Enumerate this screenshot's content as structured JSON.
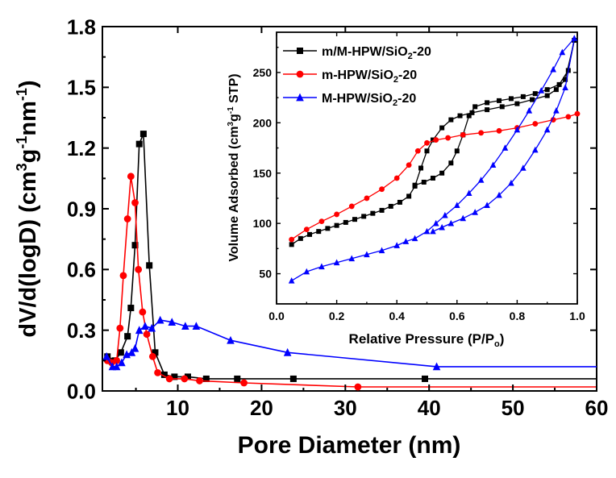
{
  "chart_data": [
    {
      "type": "line",
      "title": "",
      "xlabel": "Pore Diameter (nm)",
      "ylabel": "dV/d(logD) (cm3g-1nm-1)",
      "ylabel_parts": {
        "main": "dV/d(logD) (cm",
        "sup1": "3",
        "mid1": "g",
        "sup2": "-1",
        "mid2": "nm",
        "sup3": "-1",
        "end": ")"
      },
      "xlim": [
        1,
        60
      ],
      "ylim": [
        0,
        1.8
      ],
      "xticks": [
        10,
        20,
        30,
        40,
        50,
        60
      ],
      "yticks": [
        0.0,
        0.3,
        0.6,
        0.9,
        1.2,
        1.5,
        1.8
      ],
      "xtick_labels": [
        "10",
        "20",
        "30",
        "40",
        "50",
        "60"
      ],
      "ytick_labels": [
        "0.0",
        "0.3",
        "0.6",
        "0.9",
        "1.2",
        "1.5",
        "1.8"
      ],
      "grid": false,
      "series": [
        {
          "name": "m/M-HPW/SiO2-20",
          "color": "#000000",
          "marker": "square",
          "points": [
            [
              1.6,
              0.17
            ],
            [
              2.5,
              0.15
            ],
            [
              3.2,
              0.19
            ],
            [
              4.0,
              0.27
            ],
            [
              4.4,
              0.41
            ],
            [
              4.9,
              0.72
            ],
            [
              5.4,
              1.22
            ],
            [
              5.9,
              1.27
            ],
            [
              6.6,
              0.62
            ],
            [
              7.3,
              0.19
            ],
            [
              8.4,
              0.08
            ],
            [
              9.6,
              0.07
            ],
            [
              11.2,
              0.07
            ],
            [
              13.4,
              0.06
            ],
            [
              17.1,
              0.06
            ],
            [
              23.8,
              0.06
            ],
            [
              39.5,
              0.06
            ],
            [
              60,
              0.06
            ]
          ]
        },
        {
          "name": "m-HPW/SiO2-20",
          "color": "#ff0000",
          "marker": "circle",
          "points": [
            [
              1.6,
              0.15
            ],
            [
              2.1,
              0.14
            ],
            [
              2.7,
              0.15
            ],
            [
              3.1,
              0.31
            ],
            [
              3.5,
              0.57
            ],
            [
              4.0,
              0.85
            ],
            [
              4.4,
              1.06
            ],
            [
              4.9,
              0.93
            ],
            [
              5.3,
              0.6
            ],
            [
              5.8,
              0.39
            ],
            [
              6.3,
              0.28
            ],
            [
              7.0,
              0.17
            ],
            [
              7.6,
              0.09
            ],
            [
              9.0,
              0.06
            ],
            [
              10.8,
              0.06
            ],
            [
              12.6,
              0.05
            ],
            [
              17.9,
              0.04
            ],
            [
              31.5,
              0.02
            ],
            [
              60,
              0.02
            ]
          ]
        },
        {
          "name": "M-HPW/SiO2-20",
          "color": "#0000ff",
          "marker": "triangle",
          "points": [
            [
              1.5,
              0.17
            ],
            [
              2.2,
              0.12
            ],
            [
              2.7,
              0.12
            ],
            [
              3.3,
              0.14
            ],
            [
              3.9,
              0.18
            ],
            [
              4.5,
              0.19
            ],
            [
              4.9,
              0.21
            ],
            [
              5.4,
              0.3
            ],
            [
              6.1,
              0.32
            ],
            [
              6.9,
              0.31
            ],
            [
              7.9,
              0.35
            ],
            [
              9.3,
              0.34
            ],
            [
              10.9,
              0.32
            ],
            [
              12.2,
              0.32
            ],
            [
              16.3,
              0.25
            ],
            [
              23.1,
              0.19
            ],
            [
              40.9,
              0.12
            ],
            [
              60,
              0.12
            ]
          ]
        }
      ]
    },
    {
      "type": "line",
      "title": "",
      "xlabel": "Relative Pressure (P/Po)",
      "xlabel_parts": {
        "main": "Relative Pressure (P/P",
        "sub": "o",
        "end": ")"
      },
      "ylabel": "Volume Adsorbed (cm3g-1 STP)",
      "ylabel_parts": {
        "main": "Volume Adsorbed (cm",
        "sup1": "3",
        "mid1": "g",
        "sup2": "-1",
        "end": " STP)"
      },
      "xlim": [
        0,
        1.0
      ],
      "ylim": [
        20,
        290
      ],
      "xticks": [
        0.0,
        0.2,
        0.4,
        0.6,
        0.8,
        1.0
      ],
      "yticks": [
        50,
        100,
        150,
        200,
        250
      ],
      "xtick_labels": [
        "0.0",
        "0.2",
        "0.4",
        "0.6",
        "0.8",
        "1.0"
      ],
      "ytick_labels": [
        "50",
        "100",
        "150",
        "200",
        "250"
      ],
      "grid": false,
      "legend_position": "top-left",
      "series": [
        {
          "name": "m/M-HPW/SiO2-20",
          "legend_parts": {
            "main": "m/M-HPW/SiO",
            "sub": "2",
            "end": "-20"
          },
          "color": "#000000",
          "marker": "square",
          "points": [
            [
              0.05,
              79
            ],
            [
              0.08,
              85
            ],
            [
              0.11,
              89
            ],
            [
              0.14,
              92
            ],
            [
              0.17,
              95
            ],
            [
              0.2,
              98
            ],
            [
              0.23,
              101
            ],
            [
              0.26,
              104
            ],
            [
              0.29,
              107
            ],
            [
              0.32,
              110
            ],
            [
              0.35,
              113
            ],
            [
              0.38,
              117
            ],
            [
              0.41,
              121
            ],
            [
              0.44,
              127
            ],
            [
              0.46,
              137
            ],
            [
              0.48,
              155
            ],
            [
              0.5,
              172
            ],
            [
              0.52,
              183
            ],
            [
              0.55,
              195
            ],
            [
              0.58,
              203
            ],
            [
              0.61,
              207
            ],
            [
              0.65,
              210
            ],
            [
              0.7,
              213
            ],
            [
              0.75,
              216
            ],
            [
              0.8,
              219
            ],
            [
              0.85,
              223
            ],
            [
              0.9,
              227
            ],
            [
              0.93,
              233
            ],
            [
              0.96,
              243
            ],
            [
              0.99,
              282
            ],
            [
              0.97,
              252
            ],
            [
              0.94,
              238
            ],
            [
              0.9,
              233
            ],
            [
              0.86,
              229
            ],
            [
              0.82,
              226
            ],
            [
              0.78,
              224
            ],
            [
              0.74,
              222
            ],
            [
              0.7,
              220
            ],
            [
              0.66,
              216
            ],
            [
              0.64,
              207
            ],
            [
              0.62,
              188
            ],
            [
              0.6,
              172
            ],
            [
              0.58,
              160
            ],
            [
              0.55,
              150
            ],
            [
              0.52,
              145
            ],
            [
              0.49,
              141
            ],
            [
              0.46,
              138
            ]
          ]
        },
        {
          "name": "m-HPW/SiO2-20",
          "legend_parts": {
            "main": "m-HPW/SiO",
            "sub": "2",
            "end": "-20"
          },
          "color": "#ff0000",
          "marker": "circle",
          "points": [
            [
              0.05,
              84
            ],
            [
              0.1,
              94
            ],
            [
              0.15,
              102
            ],
            [
              0.2,
              109
            ],
            [
              0.25,
              117
            ],
            [
              0.3,
              125
            ],
            [
              0.35,
              134
            ],
            [
              0.4,
              145
            ],
            [
              0.44,
              158
            ],
            [
              0.47,
              172
            ],
            [
              0.5,
              180
            ],
            [
              0.53,
              183
            ],
            [
              0.57,
              185
            ],
            [
              0.62,
              188
            ],
            [
              0.68,
              190
            ],
            [
              0.74,
              192
            ],
            [
              0.8,
              195
            ],
            [
              0.86,
              199
            ],
            [
              0.92,
              203
            ],
            [
              0.97,
              206
            ],
            [
              1.0,
              209
            ]
          ]
        },
        {
          "name": "M-HPW/SiO2-20",
          "legend_parts": {
            "main": "M-HPW/SiO",
            "sub": "2",
            "end": "-20"
          },
          "color": "#0000ff",
          "marker": "triangle",
          "points": [
            [
              0.05,
              43
            ],
            [
              0.1,
              52
            ],
            [
              0.15,
              57
            ],
            [
              0.2,
              61
            ],
            [
              0.25,
              65
            ],
            [
              0.3,
              69
            ],
            [
              0.35,
              73
            ],
            [
              0.4,
              78
            ],
            [
              0.43,
              82
            ],
            [
              0.46,
              85
            ],
            [
              0.5,
              92
            ],
            [
              0.53,
              100
            ],
            [
              0.56,
              108
            ],
            [
              0.6,
              118
            ],
            [
              0.64,
              130
            ],
            [
              0.68,
              143
            ],
            [
              0.72,
              158
            ],
            [
              0.76,
              175
            ],
            [
              0.8,
              193
            ],
            [
              0.84,
              212
            ],
            [
              0.88,
              232
            ],
            [
              0.92,
              253
            ],
            [
              0.95,
              270
            ],
            [
              0.99,
              284
            ],
            [
              0.96,
              235
            ],
            [
              0.93,
              212
            ],
            [
              0.9,
              193
            ],
            [
              0.86,
              173
            ],
            [
              0.82,
              155
            ],
            [
              0.78,
              140
            ],
            [
              0.74,
              128
            ],
            [
              0.7,
              118
            ],
            [
              0.66,
              111
            ],
            [
              0.62,
              105
            ],
            [
              0.58,
              100
            ],
            [
              0.55,
              96
            ],
            [
              0.52,
              92
            ]
          ]
        }
      ]
    }
  ]
}
